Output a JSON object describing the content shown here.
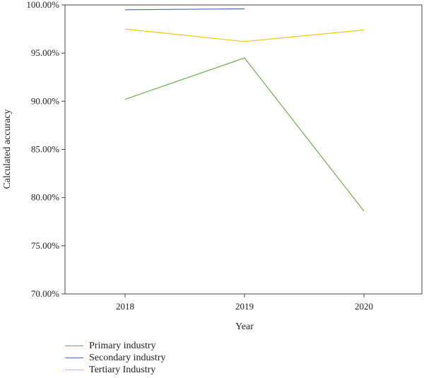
{
  "chart_data": {
    "type": "line",
    "x": [
      "2018",
      "2019",
      "2020"
    ],
    "xlabel": "Year",
    "ylabel": "Calculated accuracy",
    "ylim": [
      70,
      100
    ],
    "yticks": [
      "70.00%",
      "75.00%",
      "80.00%",
      "85.00%",
      "90.00%",
      "95.00%",
      "100.00%"
    ],
    "ytick_values": [
      70,
      75,
      80,
      85,
      90,
      95,
      100
    ],
    "grid": false,
    "legend_position": "bottom-left",
    "series": [
      {
        "name": "Primary industry",
        "color": "#6ab04c",
        "values": [
          90.2,
          94.5,
          78.6
        ]
      },
      {
        "name": "Secondary industry",
        "color": "#4a6fb5",
        "values": [
          99.5,
          99.6,
          null
        ]
      },
      {
        "name": "Tertiary Industry",
        "color": "#f5c518",
        "values": [
          97.5,
          96.2,
          97.4
        ]
      }
    ]
  }
}
